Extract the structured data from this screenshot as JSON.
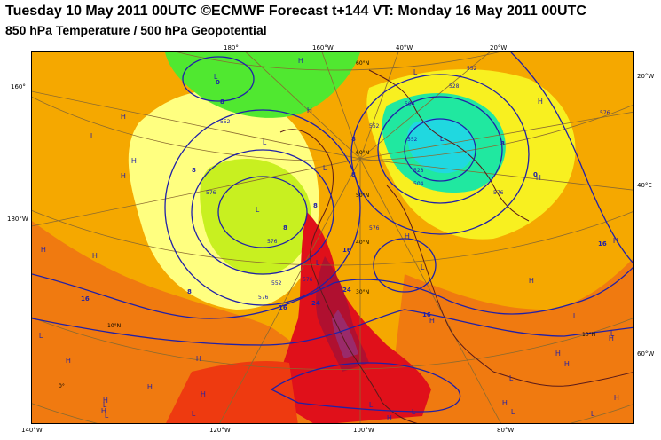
{
  "header": {
    "line1": "Tuesday 10 May 2011 00UTC ©ECMWF Forecast t+144 VT: Monday 16 May 2011 00UTC",
    "line2": "850 hPa Temperature / 500 hPa Geopotential"
  },
  "colors": {
    "background_fill": "#f5a800",
    "warm_orange": "#f07a10",
    "hot_orange": "#ee3a10",
    "red": "#e0101a",
    "dark_red": "#b01030",
    "purple_maroon": "#9a2a6a",
    "light_yellow": "#ffff80",
    "yellow": "#f8f020",
    "yellow_green": "#c8f020",
    "green": "#50e830",
    "cyan_green": "#20e8a0",
    "cyan": "#20d8e0",
    "contour": "#2020a8",
    "grid": "#8a6a30",
    "coast": "#5a1a1a"
  },
  "edge_labels": {
    "top": [
      "180°",
      "160°W",
      "40°W",
      "20°W"
    ],
    "left": [
      "160°",
      "180°W"
    ],
    "right": [
      "20°W",
      "40°E",
      "60°W"
    ],
    "bottom": [
      "140°W",
      "120°W",
      "100°W",
      "80°W"
    ]
  },
  "interior_labels": {
    "lat_lon": [
      "60°N",
      "50°N",
      "40°N",
      "30°N",
      "10°N",
      "0°",
      "10°N"
    ],
    "contour_values": [
      "552",
      "576",
      "528",
      "504",
      "552",
      "576",
      "552",
      "576",
      "576",
      "504",
      "528",
      "552",
      "576",
      "552",
      "576",
      "576"
    ],
    "temp_values": [
      "0",
      "8",
      "8",
      "16",
      "8",
      "16",
      "24",
      "8",
      "16",
      "8",
      "0",
      "8",
      "16",
      "16",
      "24",
      "8",
      "8"
    ]
  },
  "pressure_centers": {
    "highs": [
      {
        "label": "H"
      },
      {
        "label": "H"
      },
      {
        "label": "H"
      },
      {
        "label": "H"
      },
      {
        "label": "H"
      },
      {
        "label": "H"
      },
      {
        "label": "H"
      },
      {
        "label": "H"
      },
      {
        "label": "H"
      },
      {
        "label": "H"
      },
      {
        "label": "H"
      },
      {
        "label": "H"
      },
      {
        "label": "H"
      },
      {
        "label": "H"
      },
      {
        "label": "H"
      },
      {
        "label": "H"
      },
      {
        "label": "H"
      },
      {
        "label": "H"
      },
      {
        "label": "H"
      },
      {
        "label": "H"
      },
      {
        "label": "H"
      },
      {
        "label": "H"
      },
      {
        "label": "H"
      },
      {
        "label": "H"
      },
      {
        "label": "H"
      }
    ],
    "lows": [
      {
        "label": "L"
      },
      {
        "label": "L"
      },
      {
        "label": "L"
      },
      {
        "label": "L"
      },
      {
        "label": "L"
      },
      {
        "label": "L"
      },
      {
        "label": "L"
      },
      {
        "label": "L"
      },
      {
        "label": "L"
      },
      {
        "label": "L"
      },
      {
        "label": "L"
      },
      {
        "label": "L"
      },
      {
        "label": "L"
      },
      {
        "label": "L"
      },
      {
        "label": "L"
      },
      {
        "label": "L"
      },
      {
        "label": "L"
      },
      {
        "label": "L"
      },
      {
        "label": "L"
      },
      {
        "label": "L"
      }
    ]
  }
}
